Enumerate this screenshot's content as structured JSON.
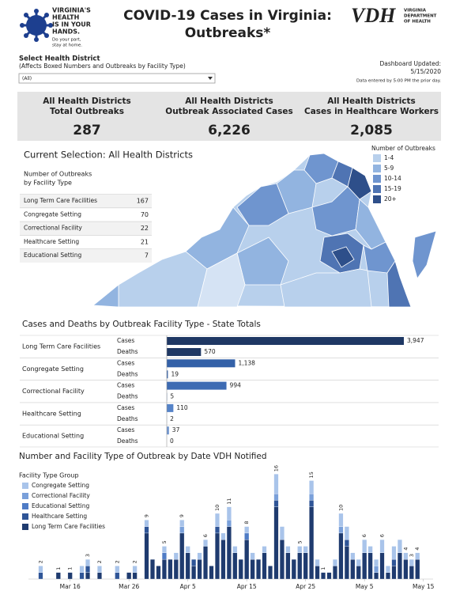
{
  "header": {
    "logo_lines": [
      "VIRGINIA'S",
      "HEALTH",
      "IS IN YOUR",
      "HANDS."
    ],
    "logo_tagline": [
      "Do your part,",
      "stay at home."
    ],
    "title_lines": [
      "COVID-19 Cases in Virginia:",
      "Outbreaks*"
    ],
    "agency_abbr": "VDH",
    "agency_lines": [
      "VIRGINIA",
      "DEPARTMENT",
      "OF HEALTH"
    ]
  },
  "filter": {
    "label": "Select Health District",
    "note": "(Affects Boxed Numbers and Outbreaks by Facility Type)",
    "selected": "(All)"
  },
  "updated": {
    "label": "Dashboard Updated:",
    "date": "5/15/2020",
    "note": "Data entered by 5:00 PM the prior day."
  },
  "kpis": [
    {
      "label_lines": [
        "All Health Districts",
        "Total Outbreaks"
      ],
      "value": "287"
    },
    {
      "label_lines": [
        "All Health Districts",
        "Outbreak Associated Cases"
      ],
      "value": "6,226"
    },
    {
      "label_lines": [
        "All Health Districts",
        "Cases in Healthcare Workers"
      ],
      "value": "2,085"
    }
  ],
  "map": {
    "title": "Current Selection: All Health Districts",
    "legend_title": "Number of Outbreaks",
    "legend": [
      {
        "label": "1-4",
        "color": "#b8d0ec"
      },
      {
        "label": "5-9",
        "color": "#92b4e0"
      },
      {
        "label": "10-14",
        "color": "#6f95cf"
      },
      {
        "label": "15-19",
        "color": "#4f74b3"
      },
      {
        "label": "20+",
        "color": "#2e4f8a"
      }
    ]
  },
  "outbreak_table": {
    "title_lines": [
      "Number of Outbreaks",
      "by Facility Type"
    ],
    "rows": [
      [
        "Long Term Care Facilities",
        167
      ],
      [
        "Congregate Setting",
        70
      ],
      [
        "Correctional Facility",
        22
      ],
      [
        "Healthcare Setting",
        21
      ],
      [
        "Educational Setting",
        7
      ]
    ]
  },
  "cases_chart": {
    "type": "bar",
    "title": "Cases and Deaths by Outbreak Facility Type - State Totals",
    "categories": [
      "Long Term Care Facilities",
      "Congregate Setting",
      "Correctional Facility",
      "Healthcare Setting",
      "Educational Setting"
    ],
    "colors": [
      "#1f3864",
      "#3461a8",
      "#3d6bb3",
      "#5583c8",
      "#6f95cf"
    ],
    "series": [
      {
        "name": "Cases",
        "values": [
          3947,
          1138,
          994,
          110,
          37
        ],
        "value_labels": [
          "3,947",
          "1,138",
          "994",
          "110",
          "37"
        ]
      },
      {
        "name": "Deaths",
        "values": [
          570,
          19,
          5,
          2,
          0
        ]
      }
    ]
  },
  "timeline_chart": {
    "type": "bar",
    "stacked": true,
    "title": "Number and Facility Type of Outbreak by Date VDH Notified",
    "legend_title": "Facility Type Group",
    "categories": [
      null,
      null,
      null,
      null,
      null,
      null,
      "Mar 16",
      null,
      null,
      null,
      null,
      null,
      null,
      null,
      null,
      null,
      "Mar 26",
      null,
      null,
      null,
      null,
      null,
      null,
      null,
      null,
      null,
      "Apr 5",
      null,
      null,
      null,
      null,
      null,
      null,
      null,
      null,
      null,
      "Apr 15",
      null,
      null,
      null,
      null,
      null,
      null,
      null,
      null,
      null,
      "Apr 25",
      null,
      null,
      null,
      null,
      null,
      null,
      null,
      null,
      null,
      "May 5",
      null,
      null,
      null,
      null,
      null,
      null,
      null,
      null,
      null,
      "May 15"
    ],
    "series": [
      {
        "name": "Congregate Setting",
        "color": "#a9c4ea",
        "values": [
          0,
          1,
          0,
          0,
          0,
          0,
          0,
          0,
          1,
          1,
          0,
          1,
          0,
          0,
          1,
          0,
          0,
          1,
          0,
          1,
          0,
          0,
          1,
          0,
          1,
          1,
          1,
          0,
          1,
          1,
          0,
          2,
          1,
          2,
          1,
          0,
          1,
          1,
          0,
          1,
          0,
          3,
          2,
          1,
          0,
          1,
          1,
          2,
          1,
          0,
          0,
          1,
          2,
          2,
          1,
          1,
          2,
          1,
          1,
          2,
          1,
          2,
          2,
          1,
          1,
          1,
          0
        ]
      },
      {
        "name": "Correctional Facility",
        "color": "#7aa0da",
        "values": [
          0,
          0,
          0,
          0,
          0,
          0,
          0,
          0,
          0,
          0,
          0,
          0,
          0,
          0,
          0,
          0,
          0,
          0,
          0,
          0,
          0,
          0,
          0,
          0,
          0,
          1,
          0,
          0,
          0,
          0,
          0,
          0,
          0,
          1,
          0,
          0,
          0,
          0,
          0,
          0,
          0,
          1,
          0,
          0,
          0,
          0,
          0,
          1,
          0,
          0,
          0,
          0,
          1,
          0,
          0,
          0,
          0,
          0,
          1,
          0,
          0,
          0,
          0,
          0,
          0,
          0,
          0
        ]
      },
      {
        "name": "Educational Setting",
        "color": "#4f7cc6",
        "values": [
          0,
          0,
          0,
          0,
          0,
          0,
          0,
          0,
          0,
          0,
          0,
          0,
          0,
          0,
          0,
          0,
          0,
          0,
          0,
          0,
          0,
          0,
          1,
          0,
          0,
          0,
          0,
          0,
          0,
          0,
          0,
          0,
          0,
          0,
          0,
          0,
          1,
          0,
          0,
          0,
          0,
          0,
          0,
          0,
          0,
          0,
          0,
          0,
          0,
          0,
          0,
          0,
          0,
          0,
          0,
          0,
          0,
          0,
          0,
          0,
          0,
          0,
          0,
          0,
          0,
          0,
          0
        ]
      },
      {
        "name": "Healthcare Setting",
        "color": "#2f5597",
        "values": [
          0,
          1,
          0,
          0,
          0,
          0,
          0,
          0,
          1,
          1,
          0,
          0,
          0,
          0,
          1,
          0,
          0,
          0,
          0,
          1,
          0,
          0,
          0,
          0,
          0,
          0,
          0,
          1,
          0,
          0,
          0,
          1,
          0,
          0,
          0,
          0,
          0,
          0,
          0,
          0,
          0,
          1,
          0,
          0,
          0,
          0,
          0,
          1,
          0,
          0,
          0,
          0,
          0,
          1,
          0,
          0,
          0,
          0,
          0,
          0,
          0,
          1,
          0,
          0,
          0,
          0,
          0
        ]
      },
      {
        "name": "Long Term Care Facilities",
        "color": "#1f3b6f",
        "values": [
          0,
          0,
          0,
          0,
          1,
          0,
          1,
          0,
          0,
          1,
          0,
          1,
          0,
          0,
          0,
          0,
          1,
          1,
          0,
          7,
          3,
          2,
          3,
          3,
          3,
          7,
          4,
          2,
          3,
          5,
          2,
          7,
          6,
          8,
          4,
          3,
          6,
          3,
          3,
          4,
          2,
          11,
          6,
          4,
          3,
          4,
          4,
          11,
          2,
          1,
          1,
          2,
          7,
          5,
          3,
          2,
          4,
          4,
          1,
          4,
          1,
          2,
          4,
          3,
          2,
          3,
          0
        ]
      }
    ],
    "total_labels": [
      null,
      "2",
      null,
      null,
      "1",
      null,
      "1",
      null,
      null,
      "3",
      null,
      "2",
      null,
      null,
      "2",
      null,
      null,
      "2",
      null,
      "9",
      null,
      null,
      "5",
      null,
      null,
      "9",
      null,
      null,
      null,
      "6",
      null,
      "10",
      null,
      "11",
      null,
      null,
      "8",
      null,
      null,
      null,
      null,
      "16",
      null,
      null,
      null,
      "5",
      null,
      "15",
      null,
      "1",
      null,
      null,
      "10",
      null,
      null,
      null,
      "6",
      null,
      null,
      "6",
      null,
      null,
      null,
      "4",
      "3",
      "4",
      null
    ]
  }
}
